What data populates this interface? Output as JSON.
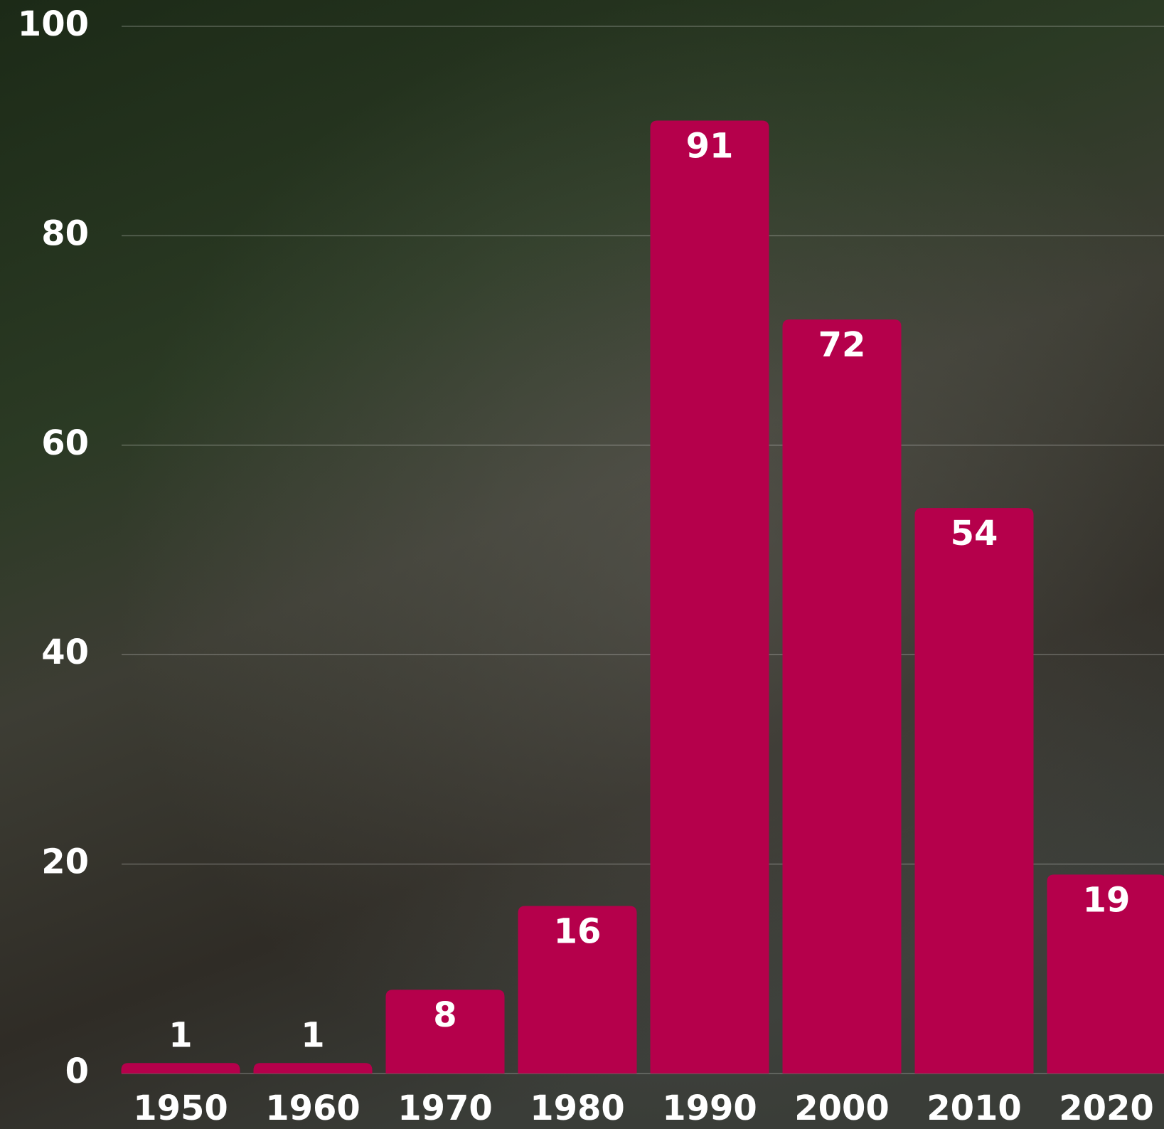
{
  "chart_data": {
    "type": "bar",
    "categories": [
      "1950",
      "1960",
      "1970",
      "1980",
      "1990",
      "2000",
      "2010",
      "2020"
    ],
    "values": [
      1,
      1,
      8,
      16,
      91,
      72,
      54,
      19
    ],
    "color": "#b5004b",
    "ylim": [
      0,
      100
    ],
    "yticks": [
      0,
      20,
      40,
      60,
      80,
      100
    ],
    "grid": true
  }
}
